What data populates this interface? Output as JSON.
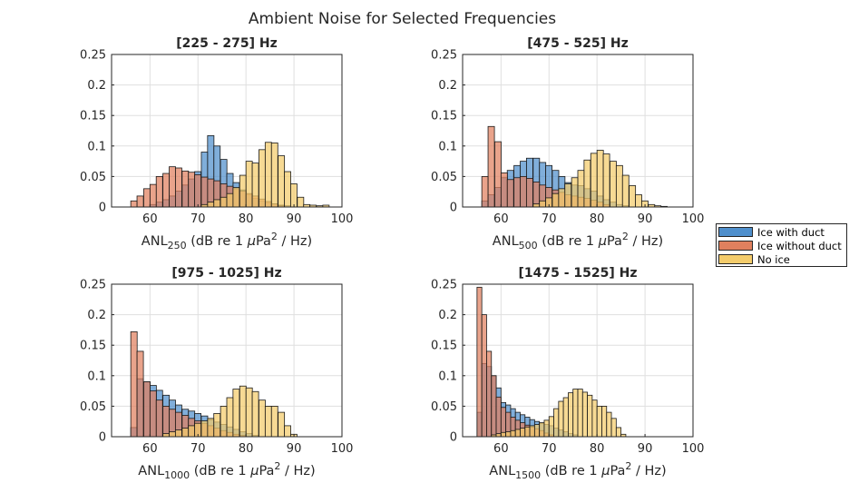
{
  "figure": {
    "title": "Ambient Noise for Selected Frequencies"
  },
  "legend": {
    "items": [
      {
        "label": "Ice with duct",
        "color": "#4f8fcc"
      },
      {
        "label": "Ice without duct",
        "color": "#e0805e"
      },
      {
        "label": "No ice",
        "color": "#f4cc6b"
      }
    ]
  },
  "chart_data": [
    {
      "type": "bar",
      "title": "[225 - 275] Hz",
      "xlabel": {
        "base": "ANL",
        "sub": "250",
        "rest": " (dB re 1 ",
        "mu": "μ",
        "unit": "Pa",
        "sup": "2",
        "tail": " / Hz)"
      },
      "xlim": [
        52,
        100
      ],
      "ylim": [
        0,
        0.25
      ],
      "xticks": [
        60,
        70,
        80,
        90,
        100
      ],
      "yticks": [
        0,
        0.05,
        0.1,
        0.15,
        0.2,
        0.25
      ],
      "bin_width": 1.33,
      "series": [
        {
          "name": "Ice with duct",
          "x": [
            60,
            61.3,
            62.7,
            64,
            65.3,
            66.7,
            68,
            69.3,
            70.7,
            72,
            73.3,
            74.7,
            76,
            77.3,
            78.7,
            80,
            81.3,
            82.7,
            84,
            85.3,
            86.7,
            88
          ],
          "values": [
            0.004,
            0.008,
            0.012,
            0.018,
            0.026,
            0.036,
            0.046,
            0.058,
            0.09,
            0.117,
            0.1,
            0.078,
            0.055,
            0.04,
            0.028,
            0.02,
            0.014,
            0.01,
            0.007,
            0.005,
            0.003,
            0.002
          ]
        },
        {
          "name": "Ice without duct",
          "x": [
            56,
            57.3,
            58.7,
            60,
            61.3,
            62.7,
            64,
            65.3,
            66.7,
            68,
            69.3,
            70.7,
            72,
            73.3,
            74.7,
            76,
            77.3,
            78.7,
            80,
            81.3,
            82.7,
            84,
            85.3,
            86.7
          ],
          "values": [
            0.01,
            0.018,
            0.03,
            0.037,
            0.05,
            0.055,
            0.066,
            0.064,
            0.059,
            0.057,
            0.053,
            0.049,
            0.046,
            0.043,
            0.038,
            0.034,
            0.03,
            0.026,
            0.022,
            0.018,
            0.013,
            0.009,
            0.005,
            0.002
          ]
        },
        {
          "name": "No ice",
          "x": [
            70.7,
            72,
            73.3,
            74.7,
            76,
            77.3,
            78.7,
            80,
            81.3,
            82.7,
            84,
            85.3,
            86.7,
            88,
            89.3,
            90.7,
            92,
            93.3,
            94.7,
            96
          ],
          "values": [
            0.004,
            0.008,
            0.012,
            0.016,
            0.022,
            0.032,
            0.052,
            0.075,
            0.072,
            0.094,
            0.106,
            0.105,
            0.084,
            0.058,
            0.038,
            0.016,
            0.004,
            0.003,
            0.002,
            0.003
          ]
        }
      ]
    },
    {
      "type": "bar",
      "title": "[475 - 525] Hz",
      "xlabel": {
        "base": "ANL",
        "sub": "500",
        "rest": " (dB re 1 ",
        "mu": "μ",
        "unit": "Pa",
        "sup": "2",
        "tail": " / Hz)"
      },
      "xlim": [
        52,
        100
      ],
      "ylim": [
        0,
        0.25
      ],
      "xticks": [
        60,
        70,
        80,
        90,
        100
      ],
      "yticks": [
        0,
        0.05,
        0.1,
        0.15,
        0.2,
        0.25
      ],
      "bin_width": 1.33,
      "series": [
        {
          "name": "Ice with duct",
          "x": [
            56,
            57.3,
            58.7,
            60,
            61.3,
            62.7,
            64,
            65.3,
            66.7,
            68,
            69.3,
            70.7,
            72,
            73.3,
            74.7,
            76,
            77.3,
            78.7,
            80,
            81.3,
            82.7,
            84,
            85.3
          ],
          "values": [
            0.01,
            0.02,
            0.032,
            0.048,
            0.06,
            0.068,
            0.075,
            0.08,
            0.08,
            0.073,
            0.068,
            0.06,
            0.05,
            0.04,
            0.036,
            0.035,
            0.03,
            0.026,
            0.018,
            0.012,
            0.008,
            0.004,
            0.002
          ]
        },
        {
          "name": "Ice without duct",
          "x": [
            56,
            57.3,
            58.7,
            60,
            61.3,
            62.7,
            64,
            65.3,
            66.7,
            68,
            69.3,
            70.7,
            72,
            73.3,
            74.7,
            76,
            77.3,
            78.7,
            80,
            81.3
          ],
          "values": [
            0.05,
            0.132,
            0.107,
            0.056,
            0.045,
            0.048,
            0.05,
            0.047,
            0.041,
            0.036,
            0.032,
            0.028,
            0.024,
            0.02,
            0.018,
            0.016,
            0.014,
            0.011,
            0.008,
            0.004
          ]
        },
        {
          "name": "No ice",
          "x": [
            66.7,
            68,
            69.3,
            70.7,
            72,
            73.3,
            74.7,
            76,
            77.3,
            78.7,
            80,
            81.3,
            82.7,
            84,
            85.3,
            86.7,
            88,
            89.3,
            90.7,
            92,
            93.3
          ],
          "values": [
            0.005,
            0.01,
            0.015,
            0.022,
            0.03,
            0.038,
            0.048,
            0.06,
            0.077,
            0.088,
            0.093,
            0.087,
            0.075,
            0.068,
            0.052,
            0.035,
            0.02,
            0.01,
            0.004,
            0.002,
            0.001
          ]
        }
      ]
    },
    {
      "type": "bar",
      "title": "[975 - 1025] Hz",
      "xlabel": {
        "base": "ANL",
        "sub": "1000",
        "rest": " (dB re 1 ",
        "mu": "μ",
        "unit": "Pa",
        "sup": "2",
        "tail": " / Hz)"
      },
      "xlim": [
        52,
        100
      ],
      "ylim": [
        0,
        0.25
      ],
      "xticks": [
        60,
        70,
        80,
        90,
        100
      ],
      "yticks": [
        0,
        0.05,
        0.1,
        0.15,
        0.2,
        0.25
      ],
      "bin_width": 1.33,
      "series": [
        {
          "name": "Ice with duct",
          "x": [
            56,
            57.3,
            58.7,
            60,
            61.3,
            62.7,
            64,
            65.3,
            66.7,
            68,
            69.3,
            70.7,
            72,
            73.3,
            74.7,
            76,
            77.3,
            78.7,
            80,
            81.3
          ],
          "values": [
            0.015,
            0.095,
            0.09,
            0.084,
            0.076,
            0.068,
            0.06,
            0.052,
            0.045,
            0.042,
            0.038,
            0.034,
            0.028,
            0.024,
            0.02,
            0.016,
            0.012,
            0.008,
            0.005,
            0.002
          ]
        },
        {
          "name": "Ice without duct",
          "x": [
            56,
            57.3,
            58.7,
            60,
            61.3,
            62.7,
            64,
            65.3,
            66.7,
            68,
            69.3,
            70.7,
            72,
            73.3,
            74.7,
            76,
            77.3,
            78.7
          ],
          "values": [
            0.172,
            0.14,
            0.09,
            0.075,
            0.06,
            0.05,
            0.045,
            0.04,
            0.035,
            0.03,
            0.026,
            0.022,
            0.018,
            0.014,
            0.01,
            0.007,
            0.004,
            0.002
          ]
        },
        {
          "name": "No ice",
          "x": [
            62.7,
            64,
            65.3,
            66.7,
            68,
            69.3,
            70.7,
            72,
            73.3,
            74.7,
            76,
            77.3,
            78.7,
            80,
            81.3,
            82.7,
            84,
            85.3,
            86.7,
            88,
            89.3
          ],
          "values": [
            0.005,
            0.008,
            0.011,
            0.014,
            0.018,
            0.022,
            0.026,
            0.03,
            0.038,
            0.05,
            0.064,
            0.078,
            0.083,
            0.08,
            0.074,
            0.06,
            0.05,
            0.05,
            0.04,
            0.018,
            0.004
          ]
        }
      ]
    },
    {
      "type": "bar",
      "title": "[1475 - 1525] Hz",
      "xlabel": {
        "base": "ANL",
        "sub": "1500",
        "rest": " (dB re 1 ",
        "mu": "μ",
        "unit": "Pa",
        "sup": "2",
        "tail": " / Hz)"
      },
      "xlim": [
        52,
        100
      ],
      "ylim": [
        0,
        0.25
      ],
      "xticks": [
        60,
        70,
        80,
        90,
        100
      ],
      "yticks": [
        0,
        0.05,
        0.1,
        0.15,
        0.2,
        0.25
      ],
      "bin_width": 1.0,
      "series": [
        {
          "name": "Ice with duct",
          "x": [
            55,
            56,
            57,
            58,
            59,
            60,
            61,
            62,
            63,
            64,
            65,
            66,
            67,
            68,
            69,
            70,
            71,
            72,
            73,
            74,
            75
          ],
          "values": [
            0.04,
            0.12,
            0.115,
            0.1,
            0.08,
            0.056,
            0.052,
            0.046,
            0.04,
            0.036,
            0.032,
            0.028,
            0.025,
            0.022,
            0.02,
            0.018,
            0.014,
            0.011,
            0.008,
            0.005,
            0.003
          ]
        },
        {
          "name": "Ice without duct",
          "x": [
            55,
            56,
            57,
            58,
            59,
            60,
            61,
            62,
            63,
            64,
            65,
            66,
            67,
            68,
            69,
            70
          ],
          "values": [
            0.245,
            0.2,
            0.14,
            0.1,
            0.065,
            0.048,
            0.04,
            0.032,
            0.027,
            0.023,
            0.019,
            0.016,
            0.013,
            0.01,
            0.006,
            0.003
          ]
        },
        {
          "name": "No ice",
          "x": [
            58,
            59,
            60,
            61,
            62,
            63,
            64,
            65,
            66,
            67,
            68,
            69,
            70,
            71,
            72,
            73,
            74,
            75,
            76,
            77,
            78,
            79,
            80,
            81,
            82,
            83,
            84,
            85
          ],
          "values": [
            0.003,
            0.005,
            0.007,
            0.008,
            0.01,
            0.012,
            0.014,
            0.016,
            0.018,
            0.02,
            0.023,
            0.027,
            0.033,
            0.046,
            0.058,
            0.064,
            0.072,
            0.078,
            0.078,
            0.073,
            0.068,
            0.06,
            0.05,
            0.05,
            0.04,
            0.03,
            0.015,
            0.004
          ]
        }
      ]
    }
  ]
}
